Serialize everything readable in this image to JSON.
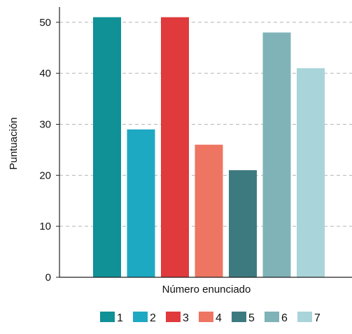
{
  "chart_data": {
    "type": "bar",
    "xlabel": "Número enunciado",
    "ylabel": "Puntuación",
    "ylim": [
      0,
      53
    ],
    "yticks": [
      0,
      10,
      20,
      30,
      40,
      50
    ],
    "grid": true,
    "legend_position": "bottom",
    "categories": [
      "1",
      "2",
      "3",
      "4",
      "5",
      "6",
      "7"
    ],
    "values": [
      51,
      29,
      51,
      26,
      21,
      48,
      41
    ],
    "colors": [
      "#0f9196",
      "#1ea9c2",
      "#e03a3c",
      "#ee7562",
      "#3d7a80",
      "#7fb3b8",
      "#a9d4d9"
    ]
  }
}
